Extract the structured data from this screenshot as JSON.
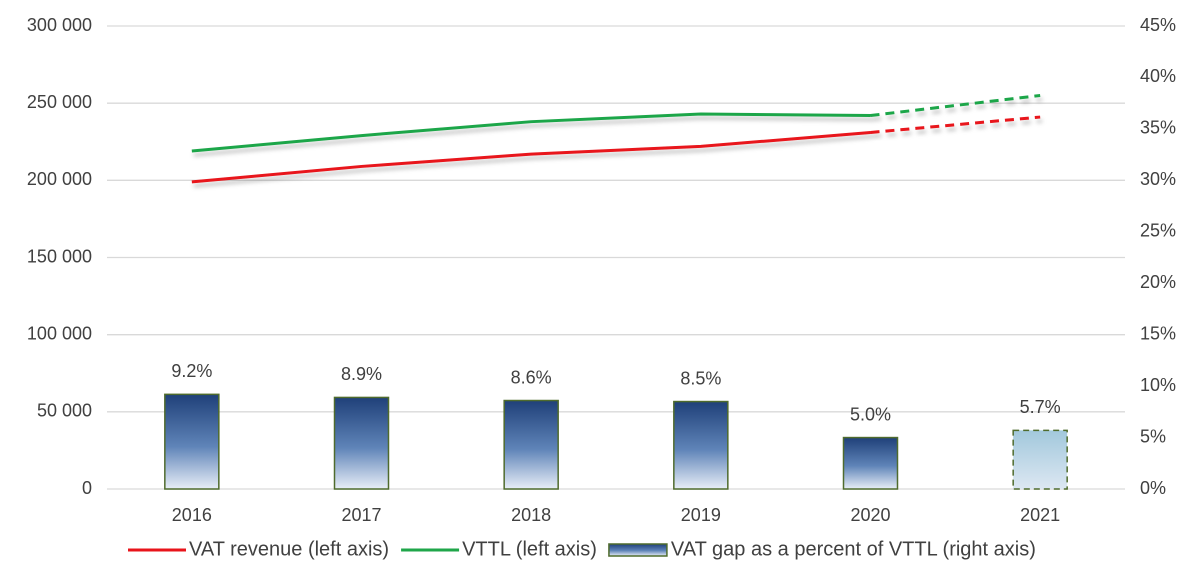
{
  "chart_data": {
    "type": "combo",
    "categories": [
      "2016",
      "2017",
      "2018",
      "2019",
      "2020",
      "2021"
    ],
    "dashed_categories": [
      "2021"
    ],
    "series": [
      {
        "name": "VAT revenue (left axis)",
        "type": "line",
        "axis": "y",
        "color": "#e8141b",
        "values": [
          199000,
          209000,
          217000,
          222000,
          231000,
          241000
        ]
      },
      {
        "name": "VTTL (left axis)",
        "type": "line",
        "axis": "y",
        "color": "#1fa64a",
        "values": [
          219000,
          229000,
          238000,
          243000,
          242000,
          255000
        ]
      },
      {
        "name": "VAT gap as a percent of VTTL (right axis)",
        "type": "bar",
        "axis": "y2",
        "color": "#24477f",
        "values": [
          9.2,
          8.9,
          8.6,
          8.5,
          5.0,
          5.7
        ],
        "value_labels": [
          "9.2%",
          "8.9%",
          "8.6%",
          "8.5%",
          "5.0%",
          "5.7%"
        ]
      }
    ],
    "ylim": [
      0,
      300000
    ],
    "yticks": [
      0,
      {
        "value": 50000,
        "label": "50 000"
      },
      {
        "value": 100000,
        "label": "100 000"
      },
      {
        "value": 150000,
        "label": "150 000"
      },
      {
        "value": 200000,
        "label": "200 000"
      },
      {
        "value": 250000,
        "label": "250 000"
      },
      {
        "value": 300000,
        "label": "300 000"
      }
    ],
    "y2lim": [
      0,
      45
    ],
    "y2ticks": [
      {
        "value": 0,
        "label": "0%"
      },
      {
        "value": 5,
        "label": "5%"
      },
      {
        "value": 10,
        "label": "10%"
      },
      {
        "value": 15,
        "label": "15%"
      },
      {
        "value": 20,
        "label": "20%"
      },
      {
        "value": 25,
        "label": "25%"
      },
      {
        "value": 30,
        "label": "30%"
      },
      {
        "value": 35,
        "label": "35%"
      },
      {
        "value": 40,
        "label": "40%"
      },
      {
        "value": 45,
        "label": "45%"
      }
    ],
    "grid": true,
    "legend": "bottom"
  }
}
